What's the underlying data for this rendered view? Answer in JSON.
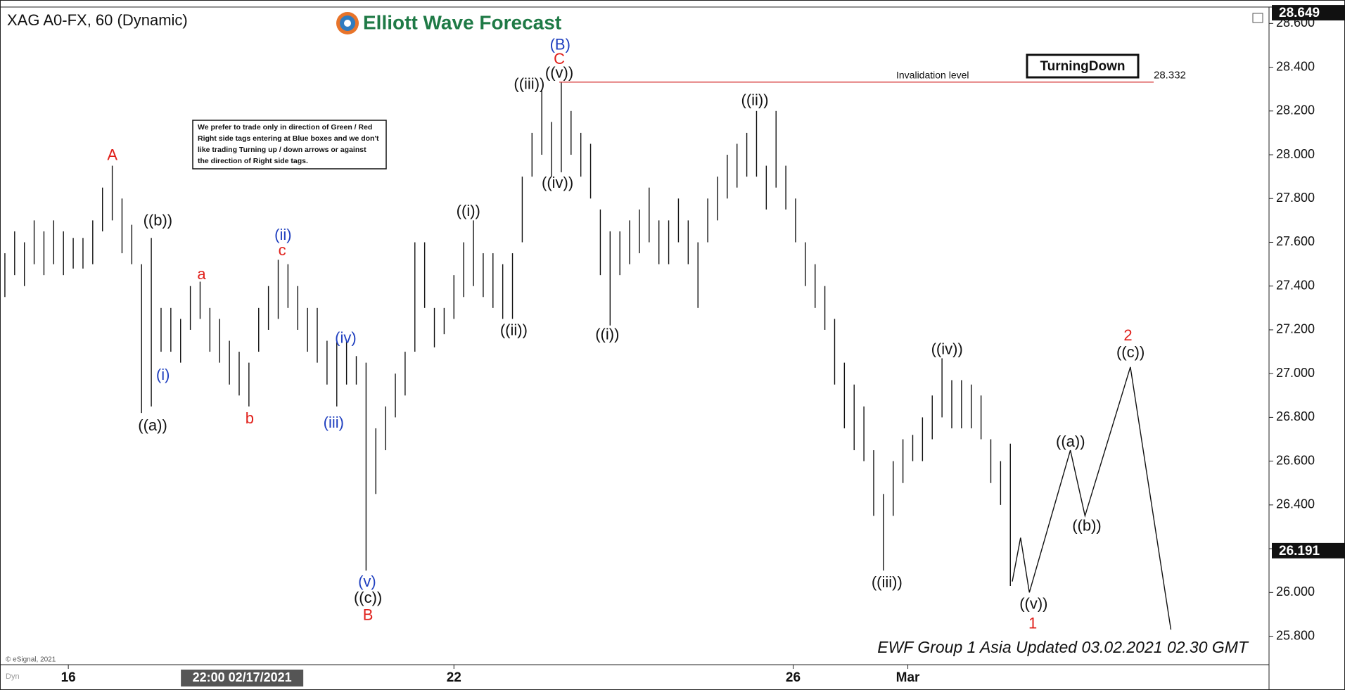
{
  "chart_data": {
    "type": "ohlc",
    "title": "XAG A0-FX, 60 (Dynamic)",
    "brand": "Elliott Wave Forecast",
    "notice": [
      "We prefer to trade only in direction of Green / Red",
      "Right side tags entering at Blue boxes and we don't",
      "like trading Turning up / down arrows or against",
      "the direction of Right side tags."
    ],
    "tag": "TurningDown",
    "invalidation": {
      "label": "Invalidation level",
      "value": 28.332,
      "value_label": "28.332",
      "color": "#d22020"
    },
    "last_price": {
      "value": 26.191,
      "label": "26.191"
    },
    "high_price": {
      "value": 28.649,
      "label": "28.649"
    },
    "footer": "EWF Group 1 Asia Updated 03.02.2021 02.30 GMT",
    "copyright": "© eSignal, 2021",
    "corner": "Dyn",
    "crosshair": {
      "value": 49.6,
      "label": "22:00 02/17/2021"
    },
    "ylim": [
      25.67,
      28.675
    ],
    "xlim": [
      0,
      260
    ],
    "yticks": [
      {
        "value": 25.8,
        "label": "25.800"
      },
      {
        "value": 26.0,
        "label": "26.000"
      },
      {
        "value": 26.2,
        "label": "26.200"
      },
      {
        "value": 26.4,
        "label": "26.400"
      },
      {
        "value": 26.6,
        "label": "26.600"
      },
      {
        "value": 26.8,
        "label": "26.800"
      },
      {
        "value": 27.0,
        "label": "27.000"
      },
      {
        "value": 27.2,
        "label": "27.200"
      },
      {
        "value": 27.4,
        "label": "27.400"
      },
      {
        "value": 27.6,
        "label": "27.600"
      },
      {
        "value": 27.8,
        "label": "27.800"
      },
      {
        "value": 28.0,
        "label": "28.000"
      },
      {
        "value": 28.2,
        "label": "28.200"
      },
      {
        "value": 28.4,
        "label": "28.400"
      },
      {
        "value": 28.6,
        "label": "28.600"
      }
    ],
    "xticks": [
      {
        "value": 14,
        "label": "16"
      },
      {
        "value": 93,
        "label": "22"
      },
      {
        "value": 162.5,
        "label": "26"
      },
      {
        "value": 186,
        "label": "Mar"
      }
    ],
    "bar_color": "#111111",
    "bars": {
      "x": [
        1,
        3,
        5,
        7,
        9,
        11,
        13,
        15,
        17,
        19,
        21,
        23,
        25,
        27,
        29,
        31,
        33,
        35,
        37,
        39,
        41,
        43,
        45,
        47,
        49,
        51,
        53,
        55,
        57,
        59,
        61,
        63,
        65,
        67,
        69,
        71,
        73,
        75,
        77,
        79,
        81,
        83,
        85,
        87,
        89,
        91,
        93,
        95,
        97,
        99,
        101,
        103,
        105,
        107,
        109,
        111,
        113,
        115,
        117,
        119,
        121,
        123,
        125,
        127,
        129,
        131,
        133,
        135,
        137,
        139,
        141,
        143,
        145,
        147,
        149,
        151,
        153,
        155,
        157,
        159,
        161,
        163,
        165,
        167,
        169,
        171,
        173,
        175,
        177,
        179,
        181,
        183,
        185,
        187,
        189,
        191,
        193,
        195,
        197,
        199,
        201,
        203,
        205,
        207
      ],
      "high": [
        27.55,
        27.65,
        27.6,
        27.7,
        27.65,
        27.7,
        27.65,
        27.62,
        27.62,
        27.7,
        27.85,
        27.95,
        27.8,
        27.68,
        27.5,
        27.62,
        27.3,
        27.3,
        27.25,
        27.4,
        27.42,
        27.3,
        27.25,
        27.15,
        27.1,
        27.05,
        27.3,
        27.4,
        27.52,
        27.5,
        27.4,
        27.3,
        27.3,
        27.15,
        27.15,
        27.15,
        27.08,
        27.05,
        26.75,
        26.85,
        27.0,
        27.1,
        27.6,
        27.6,
        27.3,
        27.3,
        27.45,
        27.6,
        27.7,
        27.55,
        27.55,
        27.5,
        27.55,
        27.9,
        28.1,
        28.3,
        28.15,
        28.33,
        28.2,
        28.1,
        28.05,
        27.75,
        27.65,
        27.65,
        27.7,
        27.75,
        27.85,
        27.7,
        27.7,
        27.8,
        27.7,
        27.6,
        27.8,
        27.9,
        28.0,
        28.05,
        28.1,
        28.2,
        27.95,
        28.2,
        27.95,
        27.8,
        27.6,
        27.5,
        27.4,
        27.25,
        27.05,
        26.95,
        26.85,
        26.65,
        26.45,
        26.6,
        26.7,
        26.72,
        26.8,
        26.9,
        27.07,
        26.97,
        26.97,
        26.95,
        26.9,
        26.7,
        26.6,
        26.68
      ],
      "low": [
        27.35,
        27.45,
        27.4,
        27.5,
        27.45,
        27.5,
        27.45,
        27.48,
        27.48,
        27.5,
        27.65,
        27.7,
        27.55,
        27.5,
        26.82,
        26.85,
        27.1,
        27.1,
        27.05,
        27.2,
        27.25,
        27.1,
        27.05,
        26.95,
        26.9,
        26.85,
        27.1,
        27.2,
        27.25,
        27.3,
        27.2,
        27.1,
        27.05,
        26.95,
        26.85,
        26.95,
        26.95,
        26.1,
        26.45,
        26.65,
        26.8,
        26.9,
        27.1,
        27.3,
        27.12,
        27.18,
        27.25,
        27.35,
        27.4,
        27.35,
        27.3,
        27.25,
        27.25,
        27.6,
        27.9,
        28.0,
        27.9,
        27.92,
        28.0,
        27.9,
        27.8,
        27.45,
        27.22,
        27.45,
        27.5,
        27.55,
        27.6,
        27.5,
        27.5,
        27.6,
        27.5,
        27.3,
        27.6,
        27.7,
        27.8,
        27.85,
        27.9,
        27.9,
        27.75,
        27.85,
        27.75,
        27.6,
        27.4,
        27.3,
        27.2,
        26.95,
        26.75,
        26.65,
        26.6,
        26.35,
        26.1,
        26.35,
        26.5,
        26.6,
        26.6,
        26.7,
        26.8,
        26.75,
        26.75,
        26.75,
        26.7,
        26.5,
        26.4,
        26.03
      ]
    },
    "projection": {
      "color": "#111111",
      "x": [
        207.4,
        209.1,
        210.9,
        219.3,
        222.3,
        231.6,
        239.9
      ],
      "y": [
        26.05,
        26.25,
        26.0,
        26.65,
        26.35,
        27.03,
        25.83
      ]
    },
    "waves": [
      {
        "text": "A",
        "color": "#e0201b"
      },
      {
        "text": "((b))",
        "color": "#111111"
      },
      {
        "text": "((a))",
        "color": "#111111"
      },
      {
        "text": "(i)",
        "color": "#1f3fbf"
      },
      {
        "text": "a",
        "color": "#e0201b"
      },
      {
        "text": "b",
        "color": "#e0201b"
      },
      {
        "text": "(ii)",
        "color": "#1f3fbf"
      },
      {
        "text": "c",
        "color": "#e0201b"
      },
      {
        "text": "(iv)",
        "color": "#1f3fbf"
      },
      {
        "text": "(iii)",
        "color": "#1f3fbf"
      },
      {
        "text": "(v)",
        "color": "#1f3fbf"
      },
      {
        "text": "((c))",
        "color": "#111111"
      },
      {
        "text": "B",
        "color": "#e0201b"
      },
      {
        "text": "((i))",
        "color": "#111111"
      },
      {
        "text": "((ii))",
        "color": "#111111"
      },
      {
        "text": "((iii))",
        "color": "#111111"
      },
      {
        "text": "(B)",
        "color": "#1f3fbf"
      },
      {
        "text": "C",
        "color": "#e0201b"
      },
      {
        "text": "((v))",
        "color": "#111111"
      },
      {
        "text": "((iv))",
        "color": "#111111"
      },
      {
        "text": "((i))",
        "color": "#111111"
      },
      {
        "text": "((ii))",
        "color": "#111111"
      },
      {
        "text": "((iii))",
        "color": "#111111"
      },
      {
        "text": "((iv))",
        "color": "#111111"
      },
      {
        "text": "((v))",
        "color": "#111111"
      },
      {
        "text": "1",
        "color": "#e0201b"
      },
      {
        "text": "((a))",
        "color": "#111111"
      },
      {
        "text": "((b))",
        "color": "#111111"
      },
      {
        "text": "2",
        "color": "#e0201b"
      },
      {
        "text": "((c))",
        "color": "#111111"
      }
    ]
  }
}
